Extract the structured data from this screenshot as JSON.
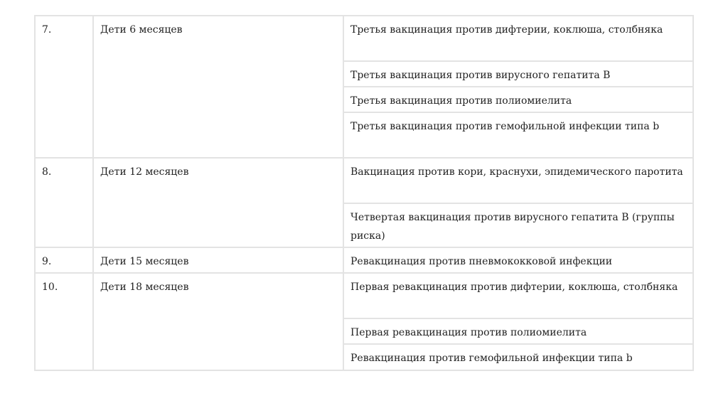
{
  "rows": [
    {
      "num": "7.",
      "age": "Дети 6 месяцев",
      "items": [
        "Третья вакцинация против дифтерии, коклюша, столбняка",
        "Третья вакцинация против вирусного гепатита В",
        "Третья вакцинация против полиомиелита",
        "Третья вакцинация против гемофильной инфекции типа b"
      ]
    },
    {
      "num": "8.",
      "age": "Дети 12 месяцев",
      "items": [
        "Вакцинация против кори, краснухи, эпидемического паротита",
        "Четвертая вакцинация против вирусного гепатита В (группы риска)"
      ]
    },
    {
      "num": "9.",
      "age": "Дети 15 месяцев",
      "items": [
        "Ревакцинация против пневмококковой инфекции"
      ]
    },
    {
      "num": "10.",
      "age": "Дети 18 месяцев",
      "items": [
        "Первая ревакцинация против дифтерии, коклюша, столбняка",
        "Первая ревакцинация против полиомиелита",
        "Ревакцинация против гемофильной инфекции типа b"
      ]
    }
  ]
}
